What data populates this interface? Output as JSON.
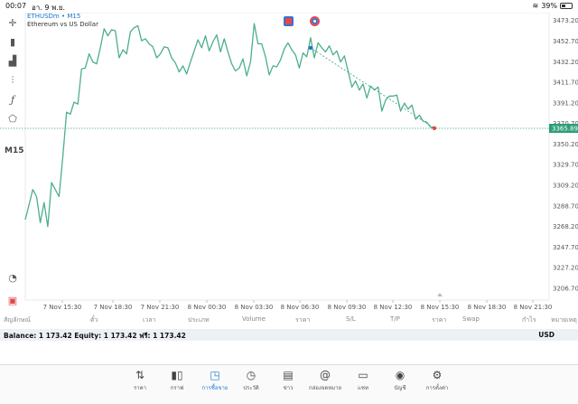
{
  "status_bar": {
    "time": "00:07",
    "date": "อา. 9 พ.ย.",
    "battery": "39%"
  },
  "symbol": {
    "name": "ETHUSDm",
    "separator": " • ",
    "timeframe": "M15",
    "description": "Ethereum vs US Dollar"
  },
  "toolbar": {
    "timeframe_label": "M15"
  },
  "chart_data": {
    "type": "line",
    "symbol": "ETHUSDm",
    "timeframe": "M15",
    "color": "#4caf8a",
    "current_price": "3365.89",
    "current_price_value": 3365.89,
    "ylim": [
      3195,
      3481
    ],
    "y_ticks": [
      "3473.20",
      "3452.70",
      "3432.20",
      "3411.70",
      "3391.20",
      "3370.70",
      "3350.20",
      "3329.70",
      "3309.20",
      "3288.70",
      "3268.20",
      "3247.70",
      "3227.20",
      "3206.70"
    ],
    "x_ticks": [
      "7 Nov 15:30",
      "7 Nov 18:30",
      "7 Nov 21:30",
      "8 Nov 00:30",
      "8 Nov 03:30",
      "8 Nov 06:30",
      "8 Nov 09:30",
      "8 Nov 12:30",
      "8 Nov 15:30",
      "8 Nov 18:30",
      "8 Nov 21:30"
    ],
    "values": [
      3275,
      3290,
      3305,
      3298,
      3272,
      3292,
      3268,
      3312,
      3305,
      3298,
      3338,
      3382,
      3380,
      3392,
      3390,
      3425,
      3426,
      3440,
      3432,
      3430,
      3446,
      3465,
      3458,
      3464,
      3463,
      3436,
      3444,
      3440,
      3462,
      3466,
      3468,
      3453,
      3455,
      3450,
      3447,
      3436,
      3440,
      3447,
      3446,
      3436,
      3431,
      3422,
      3428,
      3420,
      3432,
      3443,
      3454,
      3446,
      3458,
      3443,
      3452,
      3459,
      3442,
      3455,
      3442,
      3430,
      3423,
      3426,
      3435,
      3418,
      3432,
      3470,
      3450,
      3450,
      3437,
      3419,
      3428,
      3427,
      3434,
      3445,
      3451,
      3444,
      3439,
      3426,
      3441,
      3437,
      3456,
      3436,
      3451,
      3446,
      3442,
      3448,
      3439,
      3443,
      3432,
      3438,
      3423,
      3407,
      3413,
      3404,
      3410,
      3396,
      3408,
      3404,
      3407,
      3383,
      3394,
      3398,
      3398,
      3399,
      3383,
      3391,
      3385,
      3389,
      3375,
      3379,
      3373,
      3372,
      3367,
      3366
    ],
    "trendline": {
      "from_index": 76,
      "to_index": 109,
      "from_value": 3446,
      "to_value": 3366
    }
  },
  "columns": [
    "สัญลักษณ์",
    "ตั๋ว",
    "เวลา",
    "ประเภท",
    "Volume",
    "ราคา",
    "S/L",
    "T/P",
    "ราคา",
    "Swap",
    "กำไร",
    "หมายเหตุ"
  ],
  "balance_bar": {
    "text": "Balance: 1 173.42  Equity: 1 173.42  ฟรี: 1 173.42",
    "currency": "USD"
  },
  "tabs": [
    {
      "label": "ราคา",
      "icon": "arrows-updown-icon",
      "glyph": "⇅"
    },
    {
      "label": "กราฟ",
      "icon": "candlestick-icon",
      "glyph": "▮▯"
    },
    {
      "label": "การซื้อขาย",
      "icon": "chart-line-icon",
      "glyph": "◳",
      "active": true
    },
    {
      "label": "ประวัติ",
      "icon": "history-icon",
      "glyph": "◷"
    },
    {
      "label": "ข่าว",
      "icon": "news-icon",
      "glyph": "▤"
    },
    {
      "label": "กล่องจดหมาย",
      "icon": "mail-at-icon",
      "glyph": "@"
    },
    {
      "label": "แชท",
      "icon": "chat-icon",
      "glyph": "▭"
    },
    {
      "label": "บัญชี",
      "icon": "account-icon",
      "glyph": "◉"
    },
    {
      "label": "การตั้งค่า",
      "icon": "settings-gear-icon",
      "glyph": "⚙"
    }
  ],
  "colors": {
    "line": "#4caf8a",
    "accent": "#2a7bd6",
    "price_tag": "#2e9e7a"
  }
}
